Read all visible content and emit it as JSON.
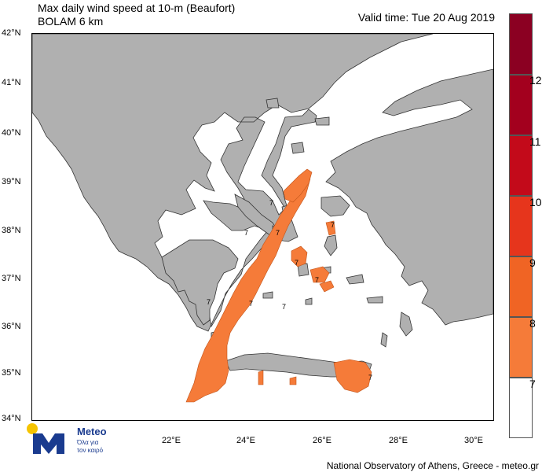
{
  "title": {
    "line1": "Max daily wind speed at 10-m (Beaufort)",
    "line2": "BOLAM 6 km"
  },
  "valid_time": "Valid time: Tue 20 Aug 2019",
  "lat_ticks": [
    "42°N",
    "41°N",
    "40°N",
    "39°N",
    "38°N",
    "37°N",
    "36°N",
    "35°N",
    "34°N"
  ],
  "lon_ticks": [
    "22°E",
    "24°E",
    "26°E",
    "28°E",
    "30°E"
  ],
  "legend": {
    "labels": [
      "12",
      "11",
      "10",
      "9",
      "8",
      "7"
    ],
    "colors": [
      "#8b0022",
      "#a3001e",
      "#c30a1a",
      "#e6351c",
      "#f06424",
      "#f57b39",
      "#ffffff"
    ]
  },
  "colors": {
    "land": "#b0b0b0",
    "sea": "#ffffff",
    "wind_7": "#f57b39",
    "border": "#333333"
  },
  "contour_labels": [
    "7",
    "7",
    "7",
    "7",
    "7",
    "7",
    "7",
    "7",
    "7",
    "7"
  ],
  "logo": {
    "name": "Meteo",
    "tagline1": "Όλα για",
    "tagline2": "τον καιρό"
  },
  "footer": "National Observatory of Athens, Greece - meteo.gr"
}
